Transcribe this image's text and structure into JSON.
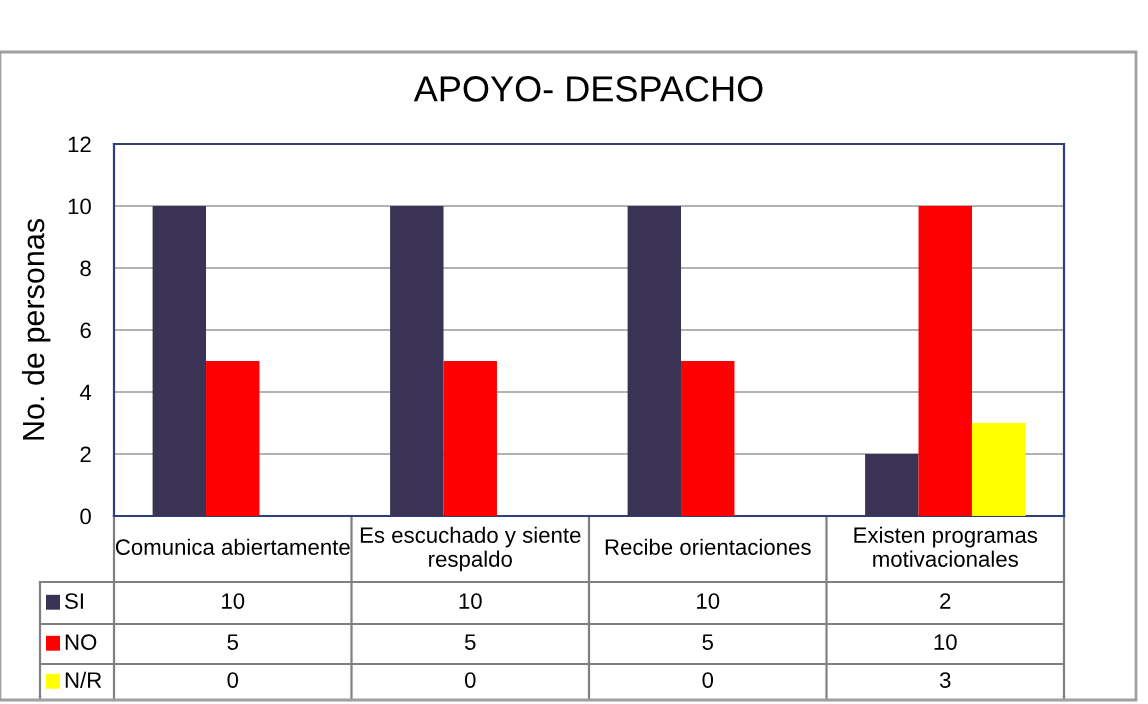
{
  "chart_data": {
    "type": "bar",
    "title": "APOYO- DESPACHO",
    "ylabel": "No. de personas",
    "categories": [
      "Comunica abiertamente",
      "Es escuchado y siente respaldo",
      "Recibe orientaciones",
      "Existen programas motivacionales"
    ],
    "series": [
      {
        "name": "SI",
        "color": "#3b3355",
        "values": [
          10,
          10,
          10,
          2
        ]
      },
      {
        "name": "NO",
        "color": "#ff0000",
        "values": [
          5,
          5,
          5,
          10
        ]
      },
      {
        "name": "N/R",
        "color": "#ffff00",
        "values": [
          0,
          0,
          0,
          3
        ]
      }
    ],
    "ylim": [
      0,
      12
    ],
    "yticks": [
      0,
      2,
      4,
      6,
      8,
      10,
      12
    ],
    "grid": "y",
    "data_labels": true,
    "legend": "bottom"
  }
}
